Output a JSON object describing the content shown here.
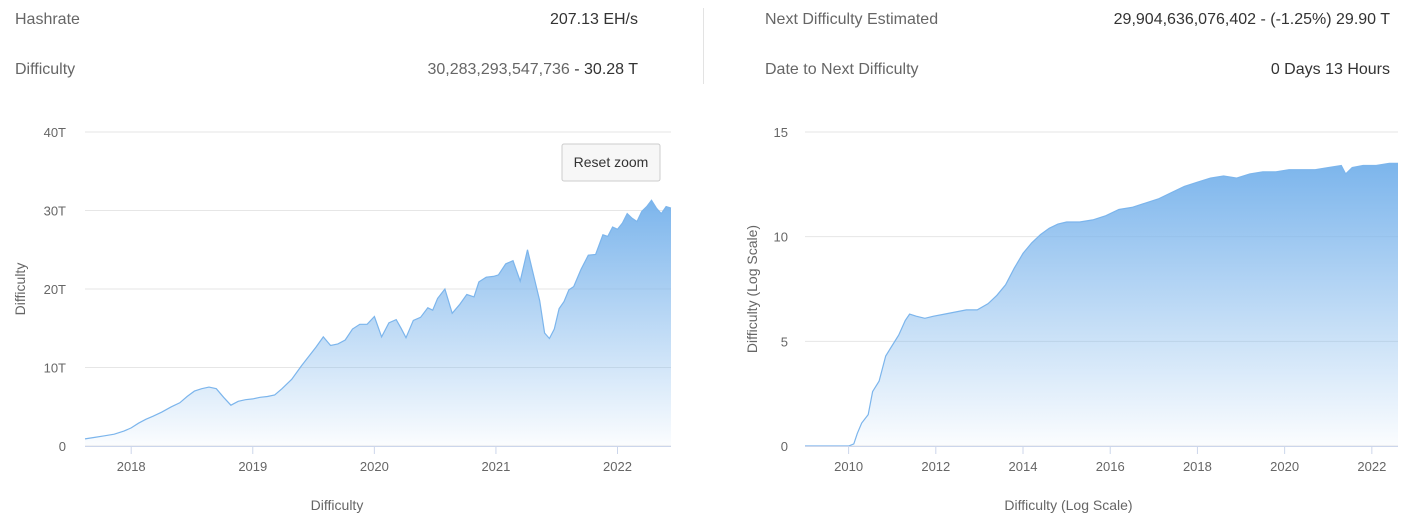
{
  "stats": {
    "hashrate_label": "Hashrate",
    "hashrate_value": "207.13 EH/s",
    "difficulty_label": "Difficulty",
    "difficulty_value_num": "30,283,293,547,736",
    "difficulty_value_sep": " - ",
    "difficulty_value_short": "30.28 T",
    "next_label": "Next Difficulty Estimated",
    "next_value": "29,904,636,076,402 - (-1.25%) 29.90 T",
    "date_label": "Date to Next Difficulty",
    "date_value": "0 Days 13 Hours"
  },
  "reset_zoom_label": "Reset zoom",
  "colors": {
    "area_top": "#7cb5ec",
    "line": "#7cb5ec",
    "grid": "#e6e6e6",
    "axis": "#ccd6eb",
    "label": "#666666"
  },
  "chart_data": [
    {
      "type": "area",
      "title": "",
      "xlabel": "Difficulty",
      "ylabel": "Difficulty",
      "xlim": [
        2017.62,
        2022.44
      ],
      "ylim": [
        0,
        40
      ],
      "y_unit": "T",
      "yticks": [
        0,
        10,
        20,
        30,
        40
      ],
      "ytick_labels": [
        "0",
        "10T",
        "20T",
        "30T",
        "40T"
      ],
      "xticks": [
        2018,
        2019,
        2020,
        2021,
        2022
      ],
      "xtick_labels": [
        "2018",
        "2019",
        "2020",
        "2021",
        "2022"
      ],
      "grid": true,
      "legend": "none",
      "x": [
        2017.62,
        2017.7,
        2017.78,
        2017.86,
        2017.94,
        2018.0,
        2018.06,
        2018.12,
        2018.18,
        2018.25,
        2018.33,
        2018.4,
        2018.46,
        2018.52,
        2018.58,
        2018.64,
        2018.7,
        2018.76,
        2018.82,
        2018.88,
        2018.94,
        2019.0,
        2019.06,
        2019.12,
        2019.18,
        2019.24,
        2019.32,
        2019.4,
        2019.46,
        2019.52,
        2019.58,
        2019.64,
        2019.7,
        2019.76,
        2019.82,
        2019.88,
        2019.94,
        2020.0,
        2020.06,
        2020.12,
        2020.18,
        2020.22,
        2020.26,
        2020.32,
        2020.38,
        2020.44,
        2020.48,
        2020.52,
        2020.58,
        2020.64,
        2020.7,
        2020.76,
        2020.82,
        2020.86,
        2020.92,
        2020.98,
        2021.02,
        2021.08,
        2021.14,
        2021.2,
        2021.26,
        2021.32,
        2021.36,
        2021.4,
        2021.44,
        2021.48,
        2021.52,
        2021.56,
        2021.6,
        2021.64,
        2021.7,
        2021.76,
        2021.82,
        2021.88,
        2021.92,
        2021.96,
        2022.0,
        2022.04,
        2022.08,
        2022.12,
        2022.16,
        2022.2,
        2022.24,
        2022.28,
        2022.32,
        2022.36,
        2022.4,
        2022.44
      ],
      "values": [
        0.9,
        1.1,
        1.3,
        1.5,
        1.9,
        2.3,
        2.9,
        3.4,
        3.8,
        4.3,
        5.0,
        5.5,
        6.3,
        7.0,
        7.3,
        7.5,
        7.3,
        6.2,
        5.2,
        5.7,
        5.9,
        6.0,
        6.2,
        6.3,
        6.5,
        7.3,
        8.5,
        10.2,
        11.4,
        12.6,
        13.9,
        12.8,
        13.0,
        13.5,
        14.9,
        15.5,
        15.5,
        16.5,
        13.9,
        15.7,
        16.1,
        15.0,
        13.8,
        16.0,
        16.4,
        17.6,
        17.3,
        18.8,
        20.0,
        16.9,
        18.0,
        19.3,
        19.0,
        20.9,
        21.5,
        21.6,
        21.8,
        23.2,
        23.6,
        21.0,
        25.0,
        21.1,
        18.5,
        14.4,
        13.7,
        14.9,
        17.5,
        18.4,
        19.9,
        20.3,
        22.5,
        24.3,
        24.4,
        26.9,
        26.7,
        27.9,
        27.6,
        28.4,
        29.6,
        29.0,
        28.6,
        29.9,
        30.5,
        31.3,
        30.3,
        29.6,
        30.5,
        30.3
      ]
    },
    {
      "type": "area",
      "title": "",
      "xlabel": "Difficulty (Log Scale)",
      "ylabel": "Difficulty (Log Scale)",
      "xlim": [
        2009.0,
        2022.6
      ],
      "ylim": [
        0,
        15
      ],
      "yticks": [
        0,
        5,
        10,
        15
      ],
      "ytick_labels": [
        "0",
        "5",
        "10",
        "15"
      ],
      "xticks": [
        2010,
        2012,
        2014,
        2016,
        2018,
        2020,
        2022
      ],
      "xtick_labels": [
        "2010",
        "2012",
        "2014",
        "2016",
        "2018",
        "2020",
        "2022"
      ],
      "grid": true,
      "legend": "none",
      "x": [
        2009.0,
        2009.5,
        2010.0,
        2010.12,
        2010.2,
        2010.3,
        2010.45,
        2010.55,
        2010.7,
        2010.85,
        2011.0,
        2011.15,
        2011.3,
        2011.4,
        2011.55,
        2011.75,
        2011.95,
        2012.2,
        2012.45,
        2012.7,
        2012.95,
        2013.2,
        2013.4,
        2013.6,
        2013.8,
        2014.0,
        2014.2,
        2014.4,
        2014.6,
        2014.8,
        2015.0,
        2015.3,
        2015.6,
        2015.9,
        2016.2,
        2016.5,
        2016.8,
        2017.1,
        2017.4,
        2017.7,
        2018.0,
        2018.3,
        2018.6,
        2018.9,
        2019.2,
        2019.5,
        2019.8,
        2020.1,
        2020.4,
        2020.7,
        2021.0,
        2021.3,
        2021.4,
        2021.55,
        2021.8,
        2022.1,
        2022.4,
        2022.6
      ],
      "values": [
        0.0,
        0.0,
        0.0,
        0.1,
        0.6,
        1.1,
        1.5,
        2.6,
        3.1,
        4.3,
        4.8,
        5.3,
        6.0,
        6.3,
        6.2,
        6.1,
        6.2,
        6.3,
        6.4,
        6.5,
        6.5,
        6.8,
        7.2,
        7.7,
        8.5,
        9.2,
        9.7,
        10.1,
        10.4,
        10.6,
        10.7,
        10.7,
        10.8,
        11.0,
        11.3,
        11.4,
        11.6,
        11.8,
        12.1,
        12.4,
        12.6,
        12.8,
        12.9,
        12.8,
        13.0,
        13.1,
        13.1,
        13.2,
        13.2,
        13.2,
        13.3,
        13.4,
        13.0,
        13.3,
        13.4,
        13.4,
        13.5,
        13.5
      ]
    }
  ]
}
